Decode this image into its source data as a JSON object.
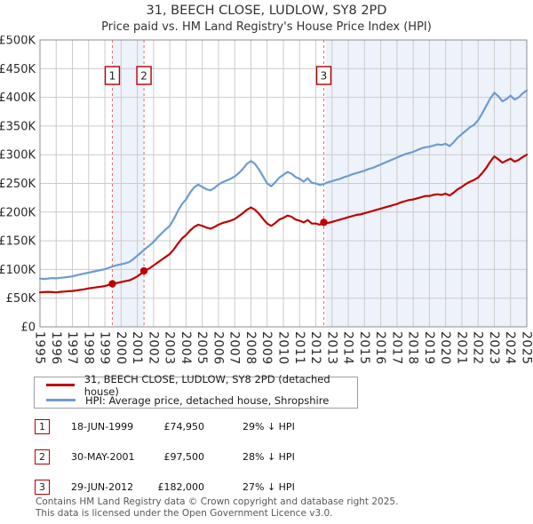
{
  "title": "31, BEECH CLOSE, LUDLOW, SY8 2PD",
  "subtitle": "Price paid vs. HM Land Registry's House Price Index (HPI)",
  "chart_data": {
    "type": "line",
    "x_start": 1995,
    "x_step": 0.25,
    "xlim": [
      1995,
      2025
    ],
    "ylim": [
      0,
      500
    ],
    "grid": true,
    "x_tick_labels": [
      "1995",
      "1996",
      "1997",
      "1998",
      "1999",
      "2000",
      "2001",
      "2002",
      "2003",
      "2004",
      "2005",
      "2006",
      "2007",
      "2008",
      "2009",
      "2010",
      "2011",
      "2012",
      "2013",
      "2014",
      "2015",
      "2016",
      "2017",
      "2018",
      "2019",
      "2020",
      "2021",
      "2022",
      "2023",
      "2024",
      "2025"
    ],
    "y_tick_labels": [
      "£0",
      "£50K",
      "£100K",
      "£150K",
      "£200K",
      "£250K",
      "£300K",
      "£350K",
      "£400K",
      "£450K",
      "£500K"
    ],
    "colors": {
      "grid": "#cbcbcb",
      "border": "#8c8c8c",
      "band": "#eef2fb",
      "dash": "#ef6a6a",
      "marker_box_border": "#b00000",
      "tick_text": "#2b2b2b"
    },
    "series": [
      {
        "name": "HPI: Average price, detached house, Shropshire",
        "color": "#6d9ccf",
        "width": 2.2,
        "values_k": [
          84,
          83.5,
          84,
          85,
          84.5,
          85.5,
          86,
          87,
          88,
          90,
          91.5,
          93,
          94.5,
          96,
          97.5,
          99,
          100.5,
          103,
          105.5,
          107.5,
          109,
          110.5,
          113,
          118,
          124,
          130,
          136,
          142,
          148,
          156,
          163,
          170,
          176,
          188,
          202,
          214,
          222,
          234,
          243,
          248,
          244,
          240,
          238,
          242,
          248,
          252,
          255,
          258,
          262,
          268,
          275,
          284,
          289,
          284,
          274,
          262,
          250,
          245,
          252,
          260,
          265,
          270,
          267,
          261,
          258,
          253,
          259,
          251,
          250,
          247,
          249,
          252,
          254,
          256,
          258,
          261,
          263,
          266,
          268,
          270,
          272,
          275,
          277,
          280,
          283,
          286,
          289,
          292,
          295,
          298,
          301,
          303,
          305,
          308,
          311,
          313,
          314,
          316,
          318,
          317,
          319,
          315,
          322,
          330,
          336,
          342,
          348,
          352,
          360,
          372,
          385,
          398,
          408,
          402,
          393,
          397,
          403,
          396,
          400,
          407,
          412
        ]
      },
      {
        "name": "31, BEECH CLOSE, LUDLOW, SY8 2PD (detached house)",
        "color": "#c00000",
        "width": 2.2,
        "values_k": [
          60,
          60.5,
          61,
          60.5,
          60,
          61,
          61.5,
          62,
          62.5,
          63.5,
          64.5,
          65.5,
          67,
          68,
          69,
          70,
          71,
          73,
          75,
          76.5,
          78,
          79.5,
          81,
          84,
          88,
          93,
          98,
          102,
          107,
          112,
          117,
          122,
          127,
          135,
          145,
          154,
          160,
          168,
          174,
          178,
          176,
          173,
          171,
          174,
          178,
          181,
          183,
          185,
          188,
          193,
          198,
          204,
          208,
          204,
          197,
          188,
          180,
          176,
          181,
          187,
          190,
          194,
          192,
          187,
          185,
          182,
          186,
          180,
          180,
          178,
          182,
          181,
          183,
          185,
          187,
          189,
          191,
          193,
          195,
          196,
          198,
          200,
          202,
          204,
          206,
          208,
          210,
          212,
          214,
          217,
          219,
          221,
          222,
          224,
          226,
          228,
          228,
          230,
          231,
          230,
          232,
          229,
          234,
          240,
          244,
          249,
          253,
          256,
          260,
          268,
          277,
          288,
          297,
          292,
          286,
          290,
          293,
          288,
          291,
          296,
          300
        ]
      }
    ],
    "markers": [
      {
        "label": "1",
        "x": 1999.46,
        "y_k": 74.95
      },
      {
        "label": "2",
        "x": 2001.41,
        "y_k": 97.5
      },
      {
        "label": "3",
        "x": 2012.49,
        "y_k": 182
      }
    ],
    "bands": [
      {
        "from": 1999.46,
        "to": 2001.41
      },
      {
        "from": 2012.6,
        "to": 2025
      }
    ]
  },
  "legend": {
    "items": [
      {
        "label": "31, BEECH CLOSE, LUDLOW, SY8 2PD (detached house)",
        "color": "#c00000"
      },
      {
        "label": "HPI: Average price, detached house, Shropshire",
        "color": "#6d9ccf"
      }
    ]
  },
  "transactions": [
    {
      "num": "1",
      "date": "18-JUN-1999",
      "price": "£74,950",
      "hpi_diff": "29% ↓ HPI"
    },
    {
      "num": "2",
      "date": "30-MAY-2001",
      "price": "£97,500",
      "hpi_diff": "28% ↓ HPI"
    },
    {
      "num": "3",
      "date": "29-JUN-2012",
      "price": "£182,000",
      "hpi_diff": "27% ↓ HPI"
    }
  ],
  "footer": {
    "line1": "Contains HM Land Registry data © Crown copyright and database right 2025.",
    "line2": "This data is licensed under the Open Government Licence v3.0."
  }
}
